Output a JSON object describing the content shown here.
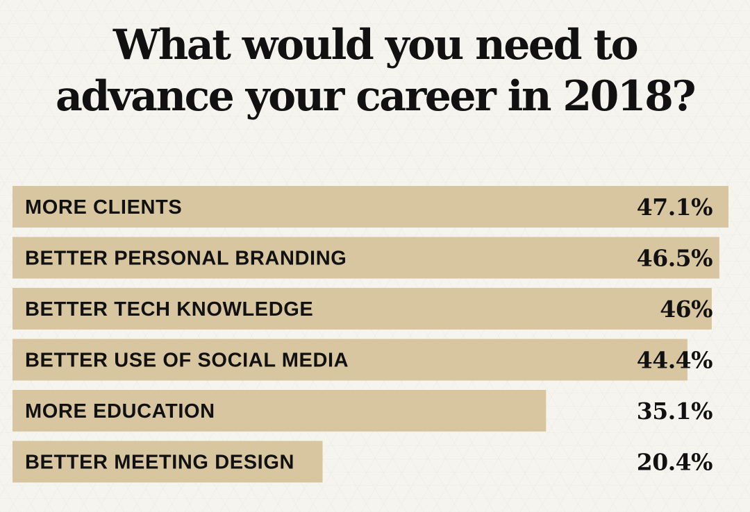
{
  "chart_data": {
    "type": "bar",
    "orientation": "horizontal",
    "title_lines": [
      "What would you need to",
      "advance your career in 2018?"
    ],
    "categories": [
      "MORE CLIENTS",
      "BETTER PERSONAL BRANDING",
      "BETTER TECH KNOWLEDGE",
      "BETTER USE OF SOCIAL MEDIA",
      "MORE EDUCATION",
      "BETTER MEETING DESIGN"
    ],
    "values": [
      47.1,
      46.5,
      46,
      44.4,
      35.1,
      20.4
    ],
    "value_labels": [
      "47.1%",
      "46.5%",
      "46%",
      "44.4%",
      "35.1%",
      "20.4%"
    ],
    "unit": "%",
    "bar_color": "#d8c6a1",
    "text_color": "#111111",
    "grid": false,
    "legend": "none"
  }
}
